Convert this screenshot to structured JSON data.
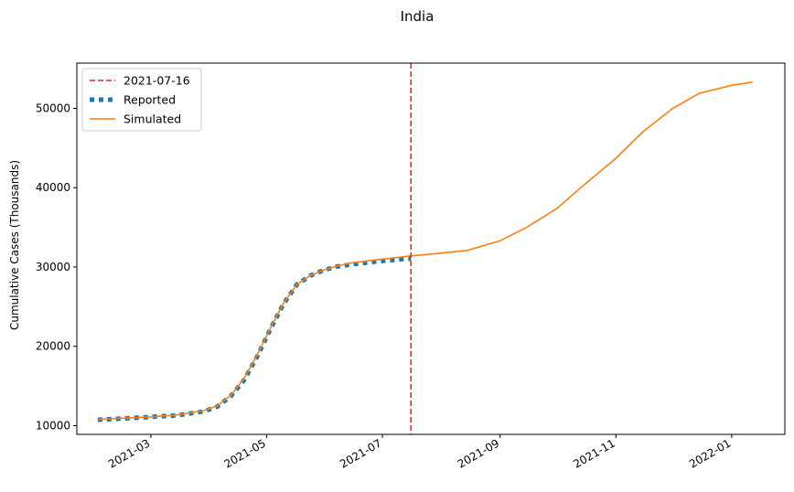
{
  "chart_data": {
    "type": "line",
    "title": "India",
    "xlabel": "",
    "ylabel": "Cumulative Cases (Thousands)",
    "x_tick_labels": [
      "2021-03",
      "2021-05",
      "2021-07",
      "2021-09",
      "2021-11",
      "2022-01"
    ],
    "y_tick_labels": [
      "10000",
      "20000",
      "30000",
      "40000",
      "50000"
    ],
    "y_ticks": [
      10000,
      20000,
      30000,
      40000,
      50000
    ],
    "x_ticks": [
      "2021-03-01",
      "2021-05-01",
      "2021-07-01",
      "2021-09-01",
      "2021-11-01",
      "2022-01-01"
    ],
    "xlim": [
      "2021-01-21",
      "2022-01-29"
    ],
    "ylim": [
      8900,
      55700
    ],
    "grid": false,
    "legend_position": "top-left",
    "vline": {
      "x": "2021-07-16",
      "label": "2021-07-16",
      "color": "#d62728"
    },
    "series": [
      {
        "name": "Reported",
        "style": "dotted",
        "color": "#1f77b4",
        "x": [
          "2021-02-01",
          "2021-02-15",
          "2021-03-01",
          "2021-03-15",
          "2021-03-29",
          "2021-04-05",
          "2021-04-12",
          "2021-04-19",
          "2021-04-26",
          "2021-05-03",
          "2021-05-10",
          "2021-05-17",
          "2021-05-24",
          "2021-05-31",
          "2021-06-07",
          "2021-06-14",
          "2021-06-21",
          "2021-06-28",
          "2021-07-05",
          "2021-07-12",
          "2021-07-16"
        ],
        "y": [
          10750,
          10900,
          11100,
          11300,
          11800,
          12400,
          13700,
          15700,
          18700,
          22200,
          25400,
          27800,
          28900,
          29600,
          30050,
          30300,
          30500,
          30700,
          30850,
          31000,
          31050
        ]
      },
      {
        "name": "Simulated",
        "style": "solid",
        "color": "#ff7f0e",
        "x": [
          "2021-02-01",
          "2021-02-15",
          "2021-03-01",
          "2021-03-15",
          "2021-03-29",
          "2021-04-05",
          "2021-04-12",
          "2021-04-19",
          "2021-04-26",
          "2021-05-03",
          "2021-05-10",
          "2021-05-17",
          "2021-05-24",
          "2021-05-31",
          "2021-06-07",
          "2021-06-14",
          "2021-06-21",
          "2021-06-28",
          "2021-07-05",
          "2021-07-16",
          "2021-07-30",
          "2021-08-15",
          "2021-09-01",
          "2021-09-15",
          "2021-10-01",
          "2021-10-15",
          "2021-11-01",
          "2021-11-15",
          "2021-12-01",
          "2021-12-15",
          "2022-01-01",
          "2022-01-12"
        ],
        "y": [
          10800,
          10950,
          11100,
          11350,
          11900,
          12500,
          13800,
          15900,
          18900,
          22300,
          25500,
          27800,
          28900,
          29600,
          30100,
          30500,
          30700,
          30900,
          31100,
          31400,
          31700,
          32100,
          33300,
          35000,
          37400,
          40300,
          43700,
          47000,
          50000,
          51900,
          52900,
          53300
        ]
      }
    ]
  }
}
